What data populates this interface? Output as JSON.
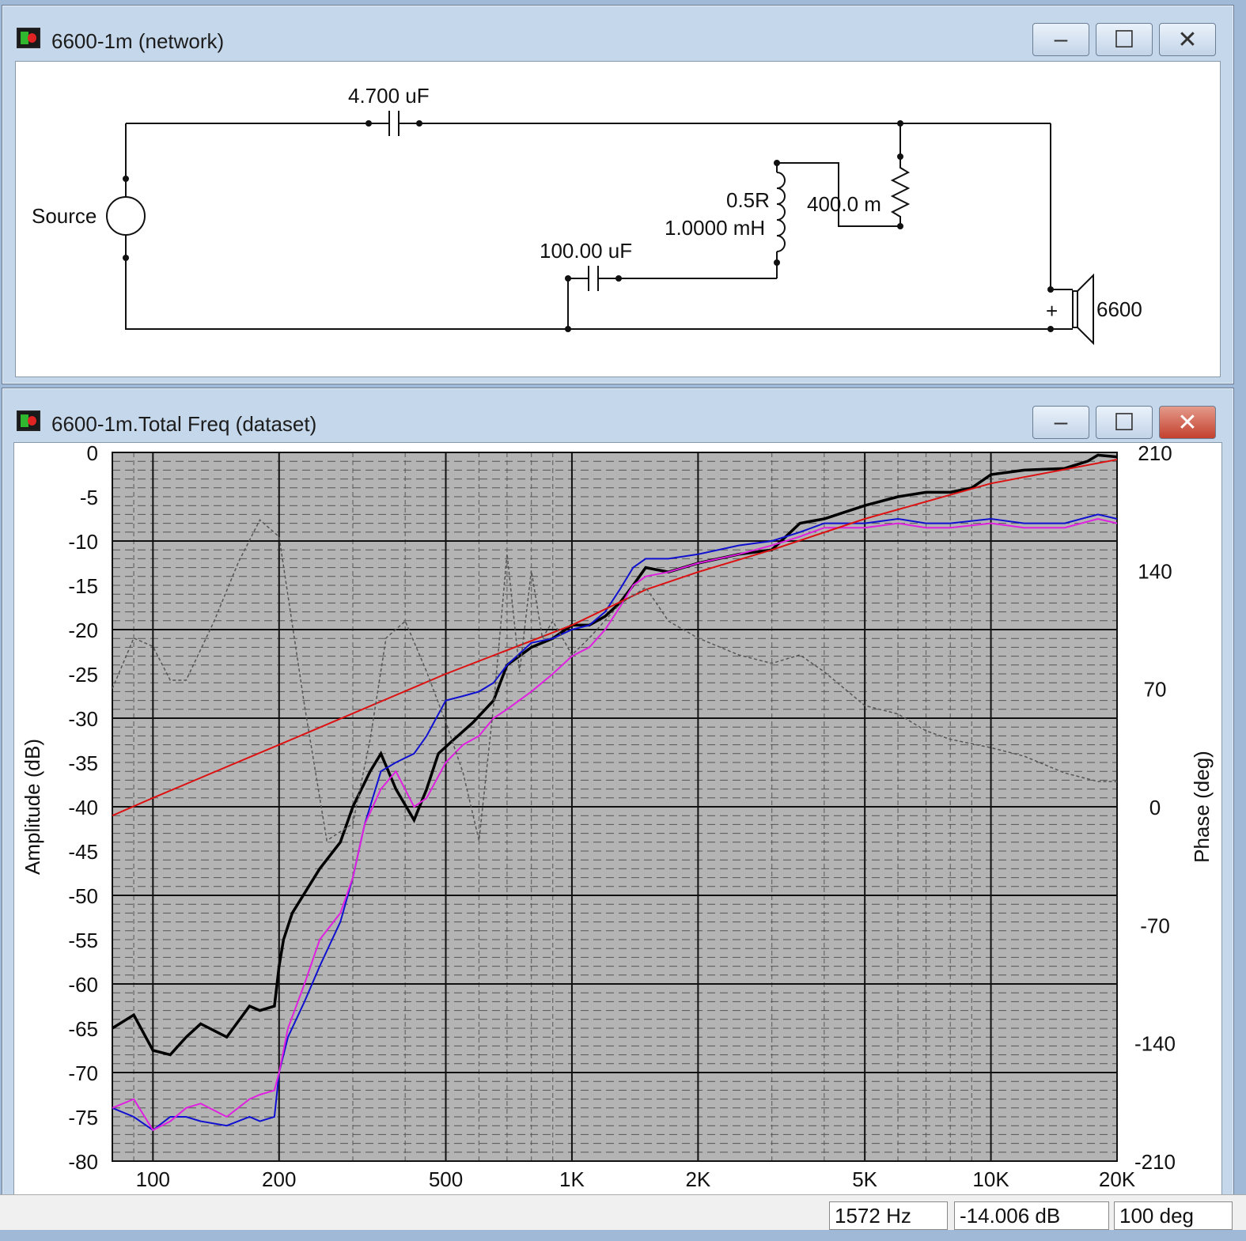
{
  "network_window": {
    "title": "6600-1m (network)",
    "buttons": {
      "minimize": "–",
      "maximize": "☐",
      "close": "✕"
    },
    "components": {
      "cap1": "4.700 uF",
      "source": "Source",
      "resistor_series": "0.5R",
      "inductor": "1.0000 mH",
      "resistor_parallel": "400.0 m",
      "cap2": "100.00 uF",
      "driver_plus": "+",
      "driver": "6600"
    }
  },
  "dataset_window": {
    "title": "6600-1m.Total Freq (dataset)",
    "buttons": {
      "minimize": "–",
      "maximize": "☐",
      "close": "✕"
    }
  },
  "status_bar": {
    "frequency": "1572 Hz",
    "amplitude": "-14.006 dB",
    "phase": "100 deg"
  },
  "chart_data": {
    "type": "line",
    "ylabel": "Amplitude (dB)",
    "y2label": "Phase (deg)",
    "x_scale": "log",
    "xlim": [
      80,
      20000
    ],
    "ylim": [
      -80,
      0
    ],
    "y2lim": [
      -210,
      210
    ],
    "grid": true,
    "x_ticks": [
      {
        "v": 100,
        "label": "100"
      },
      {
        "v": 200,
        "label": "200"
      },
      {
        "v": 500,
        "label": "500"
      },
      {
        "v": 1000,
        "label": "1K"
      },
      {
        "v": 2000,
        "label": "2K"
      },
      {
        "v": 5000,
        "label": "5K"
      },
      {
        "v": 10000,
        "label": "10K"
      },
      {
        "v": 20000,
        "label": "20K"
      }
    ],
    "y_ticks": [
      "0",
      "-5",
      "-10",
      "-15",
      "-20",
      "-25",
      "-30",
      "-35",
      "-40",
      "-45",
      "-50",
      "-55",
      "-60",
      "-65",
      "-70",
      "-75",
      "-80"
    ],
    "y2_ticks": [
      "210",
      "140",
      "70",
      "0",
      "-70",
      "-140",
      "-210"
    ],
    "colors": {
      "black": "#000000",
      "blue": "#1010d0",
      "magenta": "#e020e0",
      "red": "#dd1111",
      "phase": "#555555",
      "plot_bg": "#b4b4b4"
    },
    "series": [
      {
        "color": "black",
        "x": [
          80,
          90,
          100,
          110,
          120,
          130,
          150,
          170,
          180,
          195,
          200,
          205,
          215,
          250,
          280,
          300,
          330,
          350,
          380,
          420,
          450,
          480,
          520,
          580,
          650,
          700,
          800,
          900,
          1000,
          1100,
          1200,
          1300,
          1400,
          1500,
          1700,
          2000,
          2500,
          3000,
          3500,
          4000,
          5000,
          6000,
          7000,
          8000,
          9000,
          10000,
          12000,
          15000,
          17000,
          18000,
          20000
        ],
        "y": [
          -65,
          -63.5,
          -67.5,
          -68,
          -66,
          -64.5,
          -66,
          -62.5,
          -63,
          -62.5,
          -58,
          -55,
          -52,
          -47,
          -44,
          -40,
          -36,
          -34,
          -38,
          -41.5,
          -38,
          -34,
          -32.5,
          -30.5,
          -28,
          -24,
          -22,
          -21,
          -19.5,
          -19.5,
          -18.5,
          -17,
          -15,
          -13,
          -13.5,
          -12.5,
          -11.5,
          -11,
          -8,
          -7.5,
          -6,
          -5,
          -4.5,
          -4.5,
          -4,
          -2.5,
          -2,
          -1.8,
          -1,
          -0.3,
          -0.5
        ]
      },
      {
        "color": "blue",
        "x": [
          80,
          90,
          100,
          110,
          120,
          130,
          150,
          170,
          180,
          195,
          200,
          210,
          230,
          250,
          280,
          300,
          320,
          350,
          380,
          420,
          450,
          500,
          550,
          600,
          650,
          700,
          800,
          900,
          1000,
          1100,
          1200,
          1300,
          1400,
          1500,
          1700,
          2000,
          2500,
          3000,
          3500,
          4000,
          5000,
          6000,
          7000,
          8000,
          10000,
          12000,
          15000,
          18000,
          20000
        ],
        "y": [
          -74,
          -75,
          -76.5,
          -75,
          -75,
          -75.5,
          -76,
          -75,
          -75.5,
          -75,
          -70,
          -66,
          -62,
          -58,
          -53,
          -48,
          -42,
          -36,
          -35,
          -34,
          -32,
          -28,
          -27.5,
          -27,
          -26,
          -24,
          -21.5,
          -21,
          -20,
          -19.5,
          -18,
          -15.5,
          -13,
          -12,
          -12,
          -11.5,
          -10.5,
          -10,
          -9,
          -8,
          -8,
          -7.5,
          -8,
          -8,
          -7.5,
          -8,
          -8,
          -7,
          -7.5
        ]
      },
      {
        "color": "magenta",
        "x": [
          80,
          90,
          100,
          110,
          120,
          130,
          150,
          170,
          180,
          195,
          200,
          210,
          230,
          250,
          280,
          300,
          320,
          350,
          380,
          420,
          450,
          500,
          550,
          600,
          650,
          700,
          800,
          900,
          1000,
          1100,
          1200,
          1300,
          1400,
          1500,
          1700,
          2000,
          2500,
          3000,
          3500,
          4000,
          5000,
          6000,
          7000,
          8000,
          10000,
          12000,
          15000,
          18000,
          20000
        ],
        "y": [
          -74,
          -73,
          -76.5,
          -75.5,
          -74,
          -73.5,
          -75,
          -73,
          -72.5,
          -72,
          -70,
          -65,
          -60,
          -55,
          -52,
          -48,
          -42,
          -38,
          -36,
          -40,
          -39,
          -35,
          -33,
          -32,
          -30,
          -29,
          -27,
          -25,
          -23,
          -22,
          -20,
          -17.5,
          -15,
          -14,
          -13.5,
          -12.5,
          -11.5,
          -10.5,
          -9.5,
          -8.5,
          -8.5,
          -8,
          -8.5,
          -8.5,
          -8,
          -8.5,
          -8.5,
          -7.5,
          -8
        ]
      },
      {
        "color": "red",
        "x": [
          80,
          100,
          200,
          500,
          1000,
          1500,
          2000,
          3000,
          5000,
          10000,
          20000
        ],
        "y": [
          -41,
          -39,
          -33,
          -25,
          -19.5,
          -15.5,
          -13.5,
          -11,
          -7.5,
          -3.5,
          -0.8
        ]
      },
      {
        "color": "phase",
        "dashed": true,
        "x": [
          80,
          90,
          100,
          110,
          120,
          140,
          160,
          180,
          200,
          230,
          260,
          300,
          330,
          360,
          400,
          450,
          500,
          550,
          600,
          650,
          700,
          750,
          800,
          850,
          900,
          950,
          1000,
          1100,
          1300,
          1500,
          1700,
          2000,
          2500,
          3000,
          3500,
          4000,
          5000,
          6000,
          7000,
          8000,
          10000,
          12000,
          15000,
          18000,
          20000
        ],
        "y": [
          70,
          100,
          95,
          75,
          75,
          110,
          145,
          170,
          160,
          60,
          -20,
          -10,
          40,
          100,
          110,
          80,
          50,
          20,
          -20,
          60,
          150,
          80,
          140,
          100,
          110,
          100,
          90,
          100,
          120,
          130,
          110,
          100,
          90,
          85,
          90,
          80,
          60,
          55,
          45,
          40,
          35,
          30,
          20,
          15,
          15
        ]
      }
    ]
  }
}
